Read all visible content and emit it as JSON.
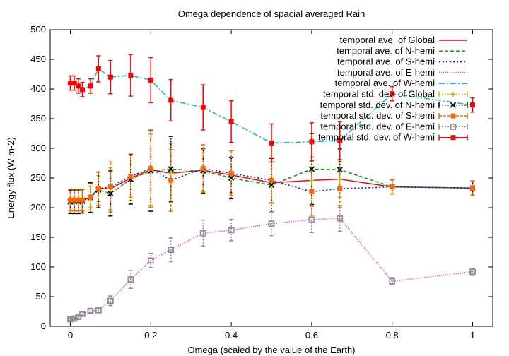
{
  "chart_data": {
    "type": "line",
    "title": "Omega dependence of spacial averaged Rain",
    "xlabel": "Omega (scaled by the value of the Earth)",
    "ylabel": "Energy flux (W m-2)",
    "xlim": [
      -0.05,
      1.05
    ],
    "ylim": [
      0,
      500
    ],
    "xticks": [
      0,
      0.2,
      0.4,
      0.6,
      0.8,
      1
    ],
    "xtick_labels": [
      "0",
      "0.2",
      "0.4",
      "0.6",
      "0.8",
      "1"
    ],
    "yticks": [
      0,
      50,
      100,
      150,
      200,
      250,
      300,
      350,
      400,
      450,
      500
    ],
    "ytick_labels": [
      "0",
      "50",
      "100",
      "150",
      "200",
      "250",
      "300",
      "350",
      "400",
      "450",
      "500"
    ],
    "grid": false,
    "legend_position": "top-right",
    "x": [
      0,
      0.01,
      0.02,
      0.03,
      0.05,
      0.07,
      0.1,
      0.15,
      0.2,
      0.25,
      0.33,
      0.4,
      0.5,
      0.6,
      0.67,
      0.8,
      1.0
    ],
    "series": [
      {
        "name": "temporal ave. of Global",
        "color": "#ff0000",
        "dash": "",
        "values": [
          212,
          212,
          212,
          212,
          218,
          232,
          232,
          250,
          264,
          258,
          263,
          255,
          242,
          246,
          248,
          235,
          233
        ]
      },
      {
        "name": "temporal ave. of N-hemi",
        "color": "#00a000",
        "dash": "5,3",
        "values": [
          210,
          210,
          210,
          211,
          217,
          230,
          224,
          248,
          262,
          265,
          262,
          250,
          238,
          265,
          264,
          235,
          233
        ]
      },
      {
        "name": "temporal ave. of S-hemi",
        "color": "#0000ff",
        "dash": "2,3",
        "values": [
          213,
          213,
          213,
          213,
          218,
          232,
          235,
          253,
          266,
          246,
          266,
          258,
          246,
          227,
          232,
          235,
          233
        ]
      },
      {
        "name": "temporal ave. of E-hemi",
        "color": "#ff00ff",
        "dash": "1,2",
        "values": [
          12,
          13,
          16,
          21,
          26,
          27,
          43,
          79,
          111,
          129,
          157,
          162,
          173,
          180,
          182,
          76,
          92
        ]
      },
      {
        "name": "temporal ave. of W-hemi",
        "color": "#00c0c0",
        "dash": "8,3,2,3",
        "values": [
          410,
          410,
          405,
          399,
          405,
          434,
          420,
          423,
          415,
          381,
          369,
          345,
          309,
          311,
          313,
          392,
          373
        ]
      }
    ],
    "error_series": [
      {
        "name": "temporal std. dev. of Global",
        "color": "#c0c000",
        "marker": "plus",
        "dash": "2,2",
        "values": [
          212,
          212,
          212,
          212,
          218,
          232,
          232,
          250,
          264,
          258,
          263,
          255,
          242,
          246,
          248,
          235,
          233
        ],
        "err": [
          18,
          18,
          18,
          18,
          18,
          22,
          35,
          38,
          60,
          50,
          35,
          30,
          35,
          40,
          30,
          12,
          12
        ]
      },
      {
        "name": "temporal std. dev. of N-hemi",
        "color": "#000000",
        "marker": "cross",
        "dash": "2,2",
        "values": [
          210,
          210,
          210,
          211,
          217,
          230,
          224,
          248,
          262,
          265,
          262,
          250,
          238,
          265,
          264,
          235,
          233
        ],
        "err": [
          20,
          20,
          20,
          20,
          25,
          30,
          38,
          42,
          68,
          55,
          38,
          35,
          45,
          60,
          35,
          12,
          12
        ]
      },
      {
        "name": "temporal std. dev. of S-hemi",
        "color": "#ff6600",
        "marker": "square-filled",
        "dash": "4,2",
        "values": [
          213,
          213,
          213,
          213,
          218,
          232,
          235,
          253,
          266,
          246,
          266,
          258,
          246,
          227,
          232,
          235,
          233
        ],
        "err": [
          18,
          18,
          18,
          18,
          22,
          28,
          42,
          36,
          65,
          52,
          40,
          38,
          38,
          40,
          32,
          12,
          12
        ]
      },
      {
        "name": "temporal std. dev. of E-hemi",
        "color": "#909090",
        "marker": "square-open",
        "dash": "2,2",
        "values": [
          12,
          13,
          16,
          21,
          26,
          27,
          43,
          79,
          111,
          129,
          157,
          162,
          173,
          180,
          182,
          76,
          92
        ],
        "err": [
          2,
          2,
          3,
          3,
          3,
          4,
          8,
          15,
          12,
          20,
          22,
          18,
          20,
          22,
          22,
          6,
          6
        ]
      },
      {
        "name": "temporal std. dev. of W-hemi",
        "color": "#ff0000",
        "marker": "square-filled",
        "dash": "",
        "values": [
          410,
          410,
          405,
          399,
          405,
          434,
          420,
          423,
          415,
          381,
          369,
          345,
          309,
          311,
          313,
          392,
          373
        ],
        "err": [
          12,
          12,
          12,
          12,
          12,
          22,
          28,
          35,
          38,
          35,
          38,
          35,
          32,
          32,
          32,
          12,
          12
        ]
      }
    ]
  }
}
